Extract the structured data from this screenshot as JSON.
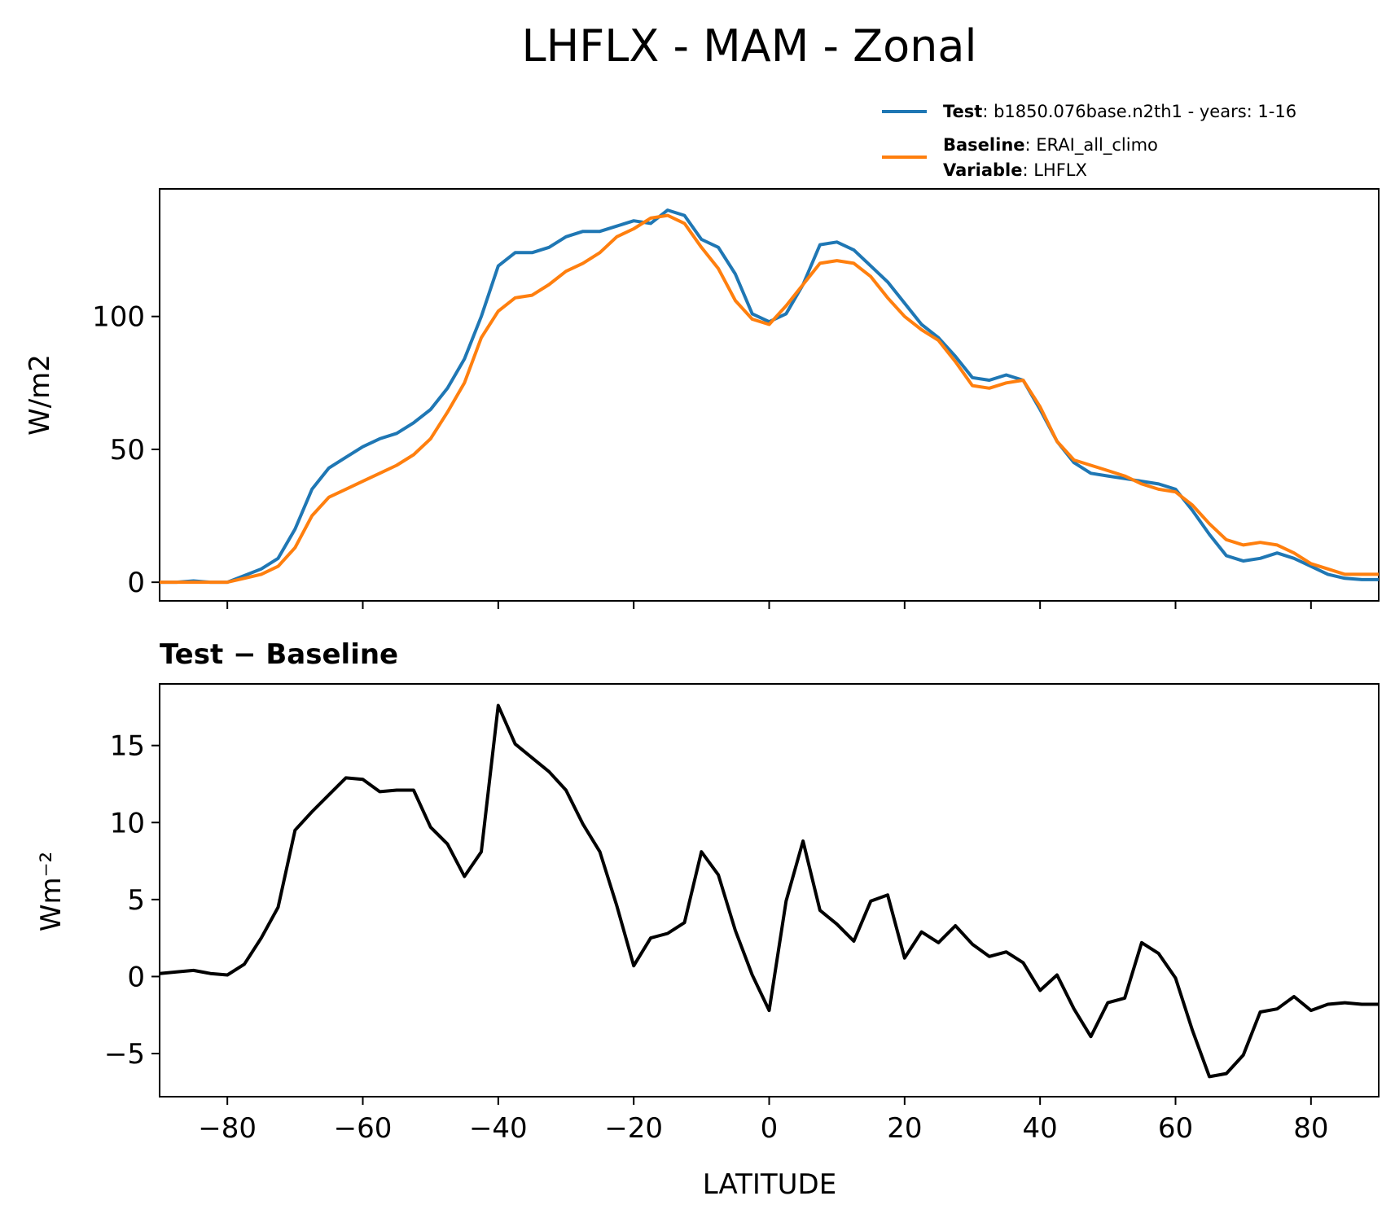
{
  "title": "LHFLX - MAM - Zonal",
  "legend": {
    "test_key": "Test",
    "test_value": ": b1850.076base.n2th1 - years: 1-16",
    "baseline_key": "Baseline",
    "baseline_value": ": ERAI_all_climo",
    "variable_key": "Variable",
    "variable_value": ": LHFLX",
    "test_color": "#1f77b4",
    "baseline_color": "#ff7f0e"
  },
  "chart_data": [
    {
      "type": "line",
      "ylabel": "W/m2",
      "xlim": [
        -90,
        90
      ],
      "ylim": [
        -7,
        148
      ],
      "yticks": [
        0,
        50,
        100
      ],
      "ytick_labels": [
        "0",
        "50",
        "100"
      ],
      "xticks": [
        -80,
        -60,
        -40,
        -20,
        0,
        20,
        40,
        60,
        80
      ],
      "grid": false,
      "legend": "top-right, outside plot",
      "x": [
        -90,
        -87.5,
        -85,
        -82.5,
        -80,
        -77.5,
        -75,
        -72.5,
        -70,
        -67.5,
        -65,
        -62.5,
        -60,
        -57.5,
        -55,
        -52.5,
        -50,
        -47.5,
        -45,
        -42.5,
        -40,
        -37.5,
        -35,
        -32.5,
        -30,
        -27.5,
        -25,
        -22.5,
        -20,
        -17.5,
        -15,
        -12.5,
        -10,
        -7.5,
        -5,
        -2.5,
        0,
        2.5,
        5,
        7.5,
        10,
        12.5,
        15,
        17.5,
        20,
        22.5,
        25,
        27.5,
        30,
        32.5,
        35,
        37.5,
        40,
        42.5,
        45,
        47.5,
        50,
        52.5,
        55,
        57.5,
        60,
        62.5,
        65,
        67.5,
        70,
        72.5,
        75,
        77.5,
        80,
        82.5,
        85,
        87.5,
        90
      ],
      "series": [
        {
          "name": "Test",
          "color": "#1f77b4",
          "values": [
            0,
            0,
            0.5,
            0,
            0,
            2.5,
            5,
            9,
            20,
            35,
            43,
            47,
            51,
            54,
            56,
            60,
            65,
            73,
            84,
            100,
            119,
            124,
            124,
            126,
            130,
            132,
            132,
            134,
            136,
            135,
            140,
            138,
            129,
            126,
            116,
            101,
            98,
            101,
            112,
            127,
            128,
            125,
            119,
            113,
            105,
            97,
            92,
            85,
            77,
            76,
            78,
            76,
            65,
            53,
            45,
            41,
            40,
            39,
            38,
            37,
            35,
            27,
            18,
            10,
            8,
            9,
            11,
            9,
            6,
            3,
            1.5,
            1,
            1
          ]
        },
        {
          "name": "Baseline",
          "color": "#ff7f0e",
          "values": [
            0,
            0,
            0,
            0,
            0,
            1.5,
            3,
            6,
            13,
            25,
            32,
            35,
            38,
            41,
            44,
            48,
            54,
            64,
            75,
            92,
            102,
            107,
            108,
            112,
            117,
            120,
            124,
            130,
            133,
            137,
            138,
            135,
            126,
            118,
            106,
            99,
            97,
            104,
            112,
            120,
            121,
            120,
            115,
            107,
            100,
            95,
            91,
            83,
            74,
            73,
            75,
            76,
            66,
            53,
            46,
            44,
            42,
            40,
            37,
            35,
            34,
            29,
            22,
            16,
            14,
            15,
            14,
            11,
            7,
            5,
            3,
            3,
            3
          ]
        }
      ]
    },
    {
      "type": "line",
      "title": "Test − Baseline",
      "xlabel": "LATITUDE",
      "ylabel": "Wm⁻²",
      "xlim": [
        -90,
        90
      ],
      "ylim": [
        -7.8,
        19
      ],
      "yticks": [
        -5,
        0,
        5,
        10,
        15
      ],
      "ytick_labels": [
        "−5",
        "0",
        "5",
        "10",
        "15"
      ],
      "xticks": [
        -80,
        -60,
        -40,
        -20,
        0,
        20,
        40,
        60,
        80
      ],
      "xtick_labels": [
        "−80",
        "−60",
        "−40",
        "−20",
        "0",
        "20",
        "40",
        "60",
        "80"
      ],
      "grid": false,
      "x": [
        -90,
        -87.5,
        -85,
        -82.5,
        -80,
        -77.5,
        -75,
        -72.5,
        -70,
        -67.5,
        -65,
        -62.5,
        -60,
        -57.5,
        -55,
        -52.5,
        -50,
        -47.5,
        -45,
        -42.5,
        -40,
        -37.5,
        -35,
        -32.5,
        -30,
        -27.5,
        -25,
        -22.5,
        -20,
        -17.5,
        -15,
        -12.5,
        -10,
        -7.5,
        -5,
        -2.5,
        0,
        2.5,
        5,
        7.5,
        10,
        12.5,
        15,
        17.5,
        20,
        22.5,
        25,
        27.5,
        30,
        32.5,
        35,
        37.5,
        40,
        42.5,
        45,
        47.5,
        50,
        52.5,
        55,
        57.5,
        60,
        62.5,
        65,
        67.5,
        70,
        72.5,
        75,
        77.5,
        80,
        82.5,
        85,
        87.5,
        90
      ],
      "series": [
        {
          "color": "#000000",
          "values": [
            0.2,
            0.3,
            0.4,
            0.2,
            0.1,
            0.8,
            2.5,
            4.5,
            9.5,
            10.7,
            11.8,
            12.9,
            12.8,
            12,
            12.1,
            12.1,
            9.7,
            8.6,
            6.5,
            8.1,
            17.6,
            15.1,
            14.2,
            13.3,
            12.1,
            9.9,
            8.1,
            4.6,
            0.7,
            2.5,
            2.8,
            3.5,
            8.1,
            6.6,
            3.0,
            0.1,
            -2.2,
            4.9,
            8.8,
            4.3,
            3.4,
            2.3,
            4.9,
            5.3,
            1.2,
            2.9,
            2.2,
            3.3,
            2.1,
            1.3,
            1.6,
            0.9,
            -0.9,
            0.1,
            -2.1,
            -3.9,
            -1.7,
            -1.4,
            2.2,
            1.5,
            -0.1,
            -3.5,
            -6.5,
            -6.3,
            -5.1,
            -2.3,
            -2.1,
            -1.3,
            -2.2,
            -1.8,
            -1.7,
            -1.8,
            -1.8
          ]
        }
      ]
    }
  ]
}
